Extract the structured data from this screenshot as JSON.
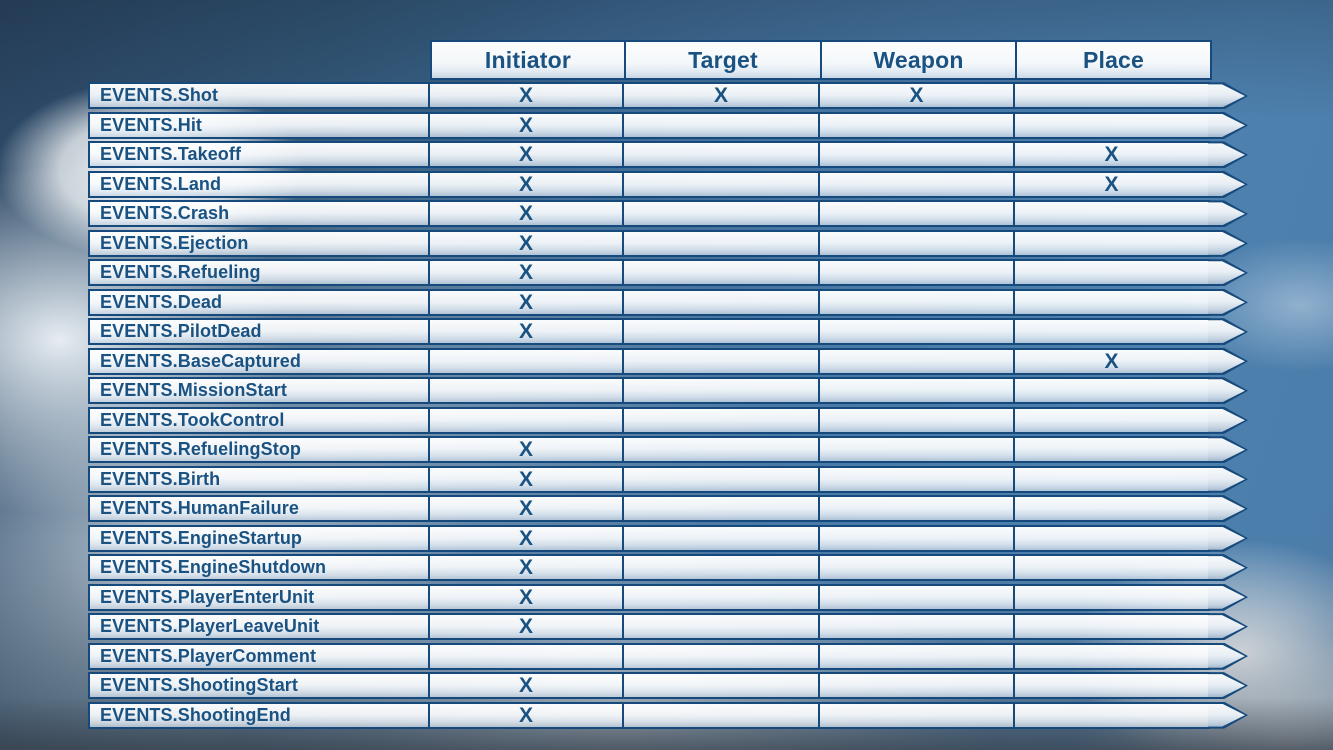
{
  "colors": {
    "border": "#174a7c",
    "text": "#1a5282",
    "sky_dark": "#2b4562",
    "sky_blue": "#4e81af"
  },
  "table": {
    "header": {
      "columns": [
        "Initiator",
        "Target",
        "Weapon",
        "Place"
      ]
    },
    "rows": [
      {
        "event": "EVENTS.Shot",
        "marks": [
          "X",
          "X",
          "X",
          ""
        ]
      },
      {
        "event": "EVENTS.Hit",
        "marks": [
          "X",
          "",
          "",
          ""
        ]
      },
      {
        "event": "EVENTS.Takeoff",
        "marks": [
          "X",
          "",
          "",
          "X"
        ]
      },
      {
        "event": "EVENTS.Land",
        "marks": [
          "X",
          "",
          "",
          "X"
        ]
      },
      {
        "event": "EVENTS.Crash",
        "marks": [
          "X",
          "",
          "",
          ""
        ]
      },
      {
        "event": "EVENTS.Ejection",
        "marks": [
          "X",
          "",
          "",
          ""
        ]
      },
      {
        "event": "EVENTS.Refueling",
        "marks": [
          "X",
          "",
          "",
          ""
        ]
      },
      {
        "event": "EVENTS.Dead",
        "marks": [
          "X",
          "",
          "",
          ""
        ]
      },
      {
        "event": "EVENTS.PilotDead",
        "marks": [
          "X",
          "",
          "",
          ""
        ]
      },
      {
        "event": "EVENTS.BaseCaptured",
        "marks": [
          "",
          "",
          "",
          "X"
        ]
      },
      {
        "event": "EVENTS.MissionStart",
        "marks": [
          "",
          "",
          "",
          ""
        ]
      },
      {
        "event": "EVENTS.TookControl",
        "marks": [
          "",
          "",
          "",
          ""
        ]
      },
      {
        "event": "EVENTS.RefuelingStop",
        "marks": [
          "X",
          "",
          "",
          ""
        ]
      },
      {
        "event": "EVENTS.Birth",
        "marks": [
          "X",
          "",
          "",
          ""
        ]
      },
      {
        "event": "EVENTS.HumanFailure",
        "marks": [
          "X",
          "",
          "",
          ""
        ]
      },
      {
        "event": "EVENTS.EngineStartup",
        "marks": [
          "X",
          "",
          "",
          ""
        ]
      },
      {
        "event": "EVENTS.EngineShutdown",
        "marks": [
          "X",
          "",
          "",
          ""
        ]
      },
      {
        "event": "EVENTS.PlayerEnterUnit",
        "marks": [
          "X",
          "",
          "",
          ""
        ]
      },
      {
        "event": "EVENTS.PlayerLeaveUnit",
        "marks": [
          "X",
          "",
          "",
          ""
        ]
      },
      {
        "event": "EVENTS.PlayerComment",
        "marks": [
          "",
          "",
          "",
          ""
        ]
      },
      {
        "event": "EVENTS.ShootingStart",
        "marks": [
          "X",
          "",
          "",
          ""
        ]
      },
      {
        "event": "EVENTS.ShootingEnd",
        "marks": [
          "X",
          "",
          "",
          ""
        ]
      }
    ]
  }
}
